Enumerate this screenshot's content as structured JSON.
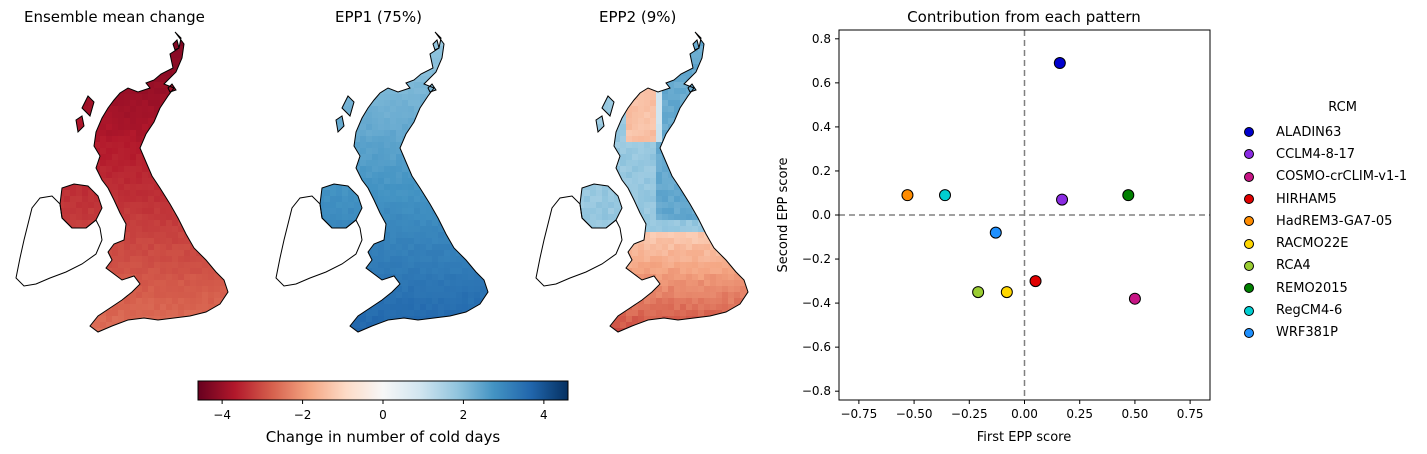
{
  "maps": [
    {
      "title": "Ensemble mean change",
      "scheme": "reds"
    },
    {
      "title": "EPP1 (75%)",
      "scheme": "blues"
    },
    {
      "title": "EPP2 (9%)",
      "scheme": "mixed"
    }
  ],
  "colorbar": {
    "label": "Change in number of cold days",
    "ticks": [
      "−4",
      "−2",
      "0",
      "2",
      "4"
    ],
    "tick_values": [
      -4,
      -2,
      0,
      2,
      4
    ],
    "range": [
      -4.6,
      4.6
    ],
    "colormap": [
      "#67001f",
      "#b2182b",
      "#d6604d",
      "#f4a582",
      "#fddbc7",
      "#f7f7f7",
      "#d1e5f0",
      "#92c5de",
      "#4393c3",
      "#2166ac",
      "#053061"
    ]
  },
  "chart_data": {
    "type": "scatter",
    "title": "Contribution from each pattern",
    "xlabel": "First EPP score",
    "ylabel": "Second EPP score",
    "xlim": [
      -0.84,
      0.84
    ],
    "ylim": [
      -0.84,
      0.84
    ],
    "xticks": [
      -0.75,
      -0.5,
      -0.25,
      0.0,
      0.25,
      0.5,
      0.75
    ],
    "xtick_labels": [
      "−0.75",
      "−0.50",
      "−0.25",
      "0.00",
      "0.25",
      "0.50",
      "0.75"
    ],
    "yticks": [
      -0.8,
      -0.6,
      -0.4,
      -0.2,
      0.0,
      0.2,
      0.4,
      0.6,
      0.8
    ],
    "ytick_labels": [
      "−0.8",
      "−0.6",
      "−0.4",
      "−0.2",
      "0.0",
      "0.2",
      "0.4",
      "0.6",
      "0.8"
    ],
    "reference_lines": {
      "x": 0,
      "y": 0,
      "style": "dashed",
      "color": "#808080"
    },
    "legend_title": "RCM",
    "legend_position": "right",
    "series": [
      {
        "name": "ALADIN63",
        "color": "#0000cd",
        "x": 0.16,
        "y": 0.69
      },
      {
        "name": "CCLM4-8-17",
        "color": "#8a2be2",
        "x": 0.17,
        "y": 0.07
      },
      {
        "name": "COSMO-crCLIM-v1-1",
        "color": "#c71585",
        "x": 0.5,
        "y": -0.38
      },
      {
        "name": "HIRHAM5",
        "color": "#e00000",
        "x": 0.05,
        "y": -0.3
      },
      {
        "name": "HadREM3-GA7-05",
        "color": "#ff8c00",
        "x": -0.53,
        "y": 0.09
      },
      {
        "name": "RACMO22E",
        "color": "#ffd700",
        "x": -0.08,
        "y": -0.35
      },
      {
        "name": "RCA4",
        "color": "#9acd32",
        "x": -0.21,
        "y": -0.35
      },
      {
        "name": "REMO2015",
        "color": "#008000",
        "x": 0.47,
        "y": 0.09
      },
      {
        "name": "RegCM4-6",
        "color": "#00ced1",
        "x": -0.36,
        "y": 0.09
      },
      {
        "name": "WRF381P",
        "color": "#1e90ff",
        "x": -0.13,
        "y": -0.08
      }
    ]
  }
}
